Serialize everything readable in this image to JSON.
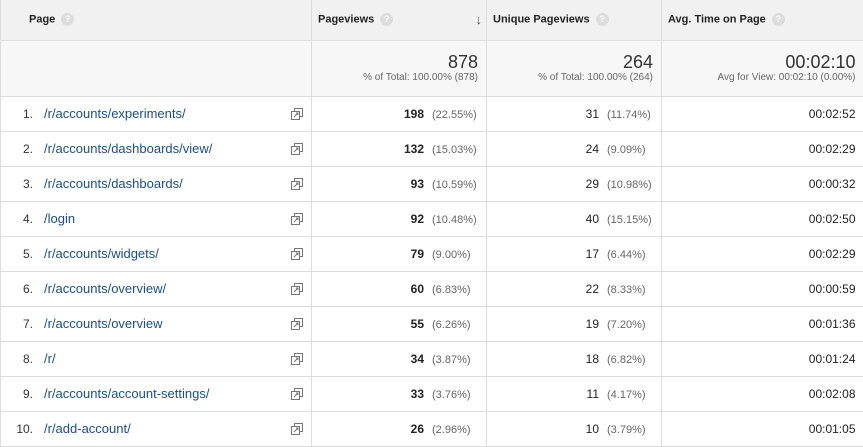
{
  "columns": {
    "page": "Page",
    "pageviews": "Pageviews",
    "unique_pageviews": "Unique Pageviews",
    "avg_time": "Avg. Time on Page",
    "help_glyph": "?",
    "sort_glyph": "↓"
  },
  "totals": {
    "pageviews": "878",
    "pageviews_sub": "% of Total: 100.00% (878)",
    "unique": "264",
    "unique_sub": "% of Total: 100.00% (264)",
    "time": "00:02:10",
    "time_sub": "Avg for View: 00:02:10 (0.00%)"
  },
  "rows": [
    {
      "rank": "1.",
      "page": "/r/accounts/experiments/",
      "pv": "198",
      "pv_pct": "(22.55%)",
      "uv": "31",
      "uv_pct": "(11.74%)",
      "time": "00:02:52"
    },
    {
      "rank": "2.",
      "page": "/r/accounts/dashboards/view/",
      "pv": "132",
      "pv_pct": "(15.03%)",
      "uv": "24",
      "uv_pct": "(9.09%)",
      "time": "00:02:29"
    },
    {
      "rank": "3.",
      "page": "/r/accounts/dashboards/",
      "pv": "93",
      "pv_pct": "(10.59%)",
      "uv": "29",
      "uv_pct": "(10.98%)",
      "time": "00:00:32"
    },
    {
      "rank": "4.",
      "page": "/login",
      "pv": "92",
      "pv_pct": "(10.48%)",
      "uv": "40",
      "uv_pct": "(15.15%)",
      "time": "00:02:50"
    },
    {
      "rank": "5.",
      "page": "/r/accounts/widgets/",
      "pv": "79",
      "pv_pct": "(9.00%)",
      "uv": "17",
      "uv_pct": "(6.44%)",
      "time": "00:02:29"
    },
    {
      "rank": "6.",
      "page": "/r/accounts/overview/",
      "pv": "60",
      "pv_pct": "(6.83%)",
      "uv": "22",
      "uv_pct": "(8.33%)",
      "time": "00:00:59"
    },
    {
      "rank": "7.",
      "page": "/r/accounts/overview",
      "pv": "55",
      "pv_pct": "(6.26%)",
      "uv": "19",
      "uv_pct": "(7.20%)",
      "time": "00:01:36"
    },
    {
      "rank": "8.",
      "page": "/r/",
      "pv": "34",
      "pv_pct": "(3.87%)",
      "uv": "18",
      "uv_pct": "(6.82%)",
      "time": "00:01:24"
    },
    {
      "rank": "9.",
      "page": "/r/accounts/account-settings/",
      "pv": "33",
      "pv_pct": "(3.76%)",
      "uv": "11",
      "uv_pct": "(4.17%)",
      "time": "00:02:08"
    },
    {
      "rank": "10.",
      "page": "/r/add-account/",
      "pv": "26",
      "pv_pct": "(2.96%)",
      "uv": "10",
      "uv_pct": "(3.79%)",
      "time": "00:01:05"
    }
  ]
}
